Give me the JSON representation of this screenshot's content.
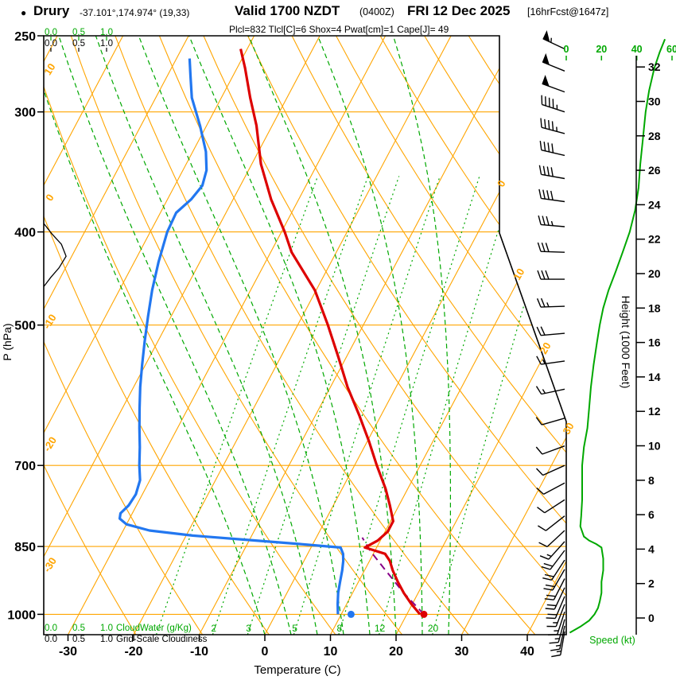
{
  "header": {
    "bullet": "●",
    "station": "Drury",
    "coords": "-37.101°,174.974° (19,33)",
    "valid_main": "Valid 1700 NZDT",
    "valid_zulu": "(0400Z)",
    "valid_date": "FRI 12 Dec 2025",
    "fcst_info": "[16hrFcst@1647z]",
    "indices_text": "Plcl=832 Tlcl[C]=6 Shox=4 Pwat[cm]=1 Cape[J]= 49"
  },
  "axes": {
    "pressure_title": "P (hPa)",
    "pressure_ticks": [
      250,
      300,
      400,
      500,
      700,
      850,
      1000
    ],
    "temperature_title": "Temperature (C)",
    "temperature_ticks": [
      -30,
      -20,
      -10,
      0,
      10,
      20,
      30,
      40
    ],
    "height_title": "Height (1000 Feet)",
    "height_ticks": [
      0,
      2,
      4,
      6,
      8,
      10,
      12,
      14,
      16,
      18,
      20,
      22,
      24,
      26,
      28,
      30,
      32
    ],
    "speed_title": "Speed (kt)",
    "speed_ticks": [
      0,
      20,
      40,
      60
    ],
    "cloud_scale_ticks": [
      "0.0",
      "0.5",
      "1.0"
    ],
    "cloudwater_title": "CloudWater (g/Kg)",
    "cloudiness_title": "Grid-Scale Cloudiness"
  },
  "colors": {
    "isotherms_adiabats": "#FFA500",
    "moist_mixing": "#00A800",
    "temperature": "#DD0000",
    "dewpoint": "#2277F0",
    "parcel": "#880088",
    "indices_text": "#C00060",
    "wind": "#000000",
    "speed_curve": "#00A800"
  },
  "chart_data": {
    "type": "line",
    "subtype": "skew-t log-p forecast sounding",
    "title": "Valid 1700 NZDT (0400Z) FRI 12 Dec 2025 [16hrFcst@1647z]",
    "station": "Drury -37.101°,174.974° (19,33)",
    "xlabel": "Temperature (C)",
    "ylabel": "P (hPa)",
    "y2label": "Height (1000 Feet)",
    "xlim": [
      -35,
      45
    ],
    "ylim": [
      1050,
      250
    ],
    "grid": true,
    "indices": {
      "Plcl": 832,
      "Tlcl_C": 6,
      "Shox": 4,
      "Pwat_cm": 1,
      "Cape_J": 49
    },
    "temperature_profile": [
      [
        1000,
        22.0
      ],
      [
        975,
        19.8
      ],
      [
        950,
        17.8
      ],
      [
        925,
        16.0
      ],
      [
        900,
        14.3
      ],
      [
        880,
        13.1
      ],
      [
        865,
        11.8
      ],
      [
        852,
        8.2
      ],
      [
        838,
        9.6
      ],
      [
        820,
        10.4
      ],
      [
        800,
        10.4
      ],
      [
        770,
        8.6
      ],
      [
        740,
        6.6
      ],
      [
        700,
        3.4
      ],
      [
        660,
        0.2
      ],
      [
        620,
        -3.4
      ],
      [
        580,
        -7.4
      ],
      [
        540,
        -11.2
      ],
      [
        500,
        -15.4
      ],
      [
        460,
        -20.2
      ],
      [
        420,
        -26.8
      ],
      [
        400,
        -29.5
      ],
      [
        370,
        -34.2
      ],
      [
        340,
        -38.6
      ],
      [
        310,
        -42.4
      ],
      [
        290,
        -45.6
      ],
      [
        270,
        -48.8
      ],
      [
        258,
        -51.0
      ]
    ],
    "dewpoint_profile": [
      [
        1000,
        9.5
      ],
      [
        975,
        8.6
      ],
      [
        950,
        7.8
      ],
      [
        925,
        7.2
      ],
      [
        900,
        6.6
      ],
      [
        880,
        6.0
      ],
      [
        865,
        5.4
      ],
      [
        852,
        4.5
      ],
      [
        845,
        -2.0
      ],
      [
        836,
        -11.0
      ],
      [
        828,
        -19.0
      ],
      [
        818,
        -26.0
      ],
      [
        806,
        -30.0
      ],
      [
        795,
        -31.5
      ],
      [
        785,
        -31.8
      ],
      [
        770,
        -31.2
      ],
      [
        750,
        -31.0
      ],
      [
        725,
        -31.5
      ],
      [
        700,
        -32.8
      ],
      [
        670,
        -34.2
      ],
      [
        640,
        -35.8
      ],
      [
        610,
        -37.4
      ],
      [
        580,
        -39.0
      ],
      [
        550,
        -40.5
      ],
      [
        520,
        -42.0
      ],
      [
        490,
        -43.5
      ],
      [
        460,
        -45.0
      ],
      [
        430,
        -46.3
      ],
      [
        400,
        -47.4
      ],
      [
        382,
        -47.6
      ],
      [
        370,
        -46.4
      ],
      [
        358,
        -45.8
      ],
      [
        345,
        -46.4
      ],
      [
        330,
        -48.0
      ],
      [
        310,
        -51.0
      ],
      [
        290,
        -54.5
      ],
      [
        275,
        -56.5
      ],
      [
        264,
        -58.0
      ]
    ],
    "parcel_path": [
      [
        1000,
        22.6
      ],
      [
        950,
        17.8
      ],
      [
        900,
        13.2
      ],
      [
        860,
        9.4
      ],
      [
        832,
        7.0
      ]
    ],
    "surface_markers": [
      {
        "name": "surface-temperature",
        "p": 1000,
        "t": 22.6
      },
      {
        "name": "surface-dewpoint",
        "p": 1000,
        "t": 11.5
      }
    ],
    "wind_speed_profile_kt": [
      [
        1045,
        2
      ],
      [
        1030,
        8
      ],
      [
        1015,
        13
      ],
      [
        1000,
        16
      ],
      [
        985,
        18
      ],
      [
        970,
        19
      ],
      [
        950,
        20
      ],
      [
        925,
        20
      ],
      [
        900,
        21
      ],
      [
        875,
        21
      ],
      [
        852,
        20
      ],
      [
        845,
        17
      ],
      [
        838,
        13
      ],
      [
        830,
        10
      ],
      [
        820,
        9
      ],
      [
        810,
        8
      ],
      [
        790,
        8.5
      ],
      [
        760,
        9
      ],
      [
        730,
        9
      ],
      [
        700,
        9
      ],
      [
        670,
        10
      ],
      [
        640,
        12
      ],
      [
        610,
        13
      ],
      [
        580,
        14
      ],
      [
        550,
        15.5
      ],
      [
        520,
        17.5
      ],
      [
        500,
        19
      ],
      [
        480,
        21
      ],
      [
        460,
        24
      ],
      [
        440,
        28
      ],
      [
        420,
        32
      ],
      [
        400,
        36
      ],
      [
        380,
        39
      ],
      [
        360,
        41
      ],
      [
        340,
        42
      ],
      [
        320,
        43.5
      ],
      [
        300,
        45
      ],
      [
        285,
        47
      ],
      [
        270,
        50
      ],
      [
        260,
        53
      ],
      [
        252,
        56
      ]
    ],
    "wind_barbs": [
      [
        258,
        55,
        295
      ],
      [
        272,
        52,
        292
      ],
      [
        286,
        50,
        290
      ],
      [
        300,
        46,
        288
      ],
      [
        316,
        44,
        285
      ],
      [
        333,
        42,
        283
      ],
      [
        352,
        40,
        280
      ],
      [
        372,
        38,
        278
      ],
      [
        395,
        36,
        275
      ],
      [
        420,
        32,
        272
      ],
      [
        448,
        28,
        270
      ],
      [
        478,
        24,
        268
      ],
      [
        510,
        20,
        265
      ],
      [
        545,
        17,
        262
      ],
      [
        583,
        14,
        258
      ],
      [
        625,
        12,
        254
      ],
      [
        668,
        10,
        250
      ],
      [
        700,
        9,
        246
      ],
      [
        730,
        9,
        242
      ],
      [
        760,
        9,
        237
      ],
      [
        790,
        8,
        232
      ],
      [
        818,
        9,
        227
      ],
      [
        840,
        14,
        222
      ],
      [
        858,
        20,
        217
      ],
      [
        878,
        21,
        213
      ],
      [
        898,
        21,
        210
      ],
      [
        918,
        20,
        207
      ],
      [
        938,
        19,
        205
      ],
      [
        958,
        18,
        203
      ],
      [
        976,
        17,
        201
      ],
      [
        994,
        16,
        198
      ],
      [
        1012,
        15,
        195
      ],
      [
        1028,
        14,
        192
      ],
      [
        1042,
        13,
        190
      ]
    ],
    "cloudiness_profile": [
      [
        392,
        0
      ],
      [
        402,
        0.07
      ],
      [
        412,
        0.15
      ],
      [
        424,
        0.19
      ],
      [
        436,
        0.13
      ],
      [
        446,
        0.06
      ],
      [
        456,
        0
      ]
    ],
    "background": {
      "isobars": [
        300,
        400,
        500,
        700,
        850,
        1000
      ],
      "isotherm_step_c": 10,
      "isotherm_labels_right": [
        0,
        10,
        20,
        30
      ],
      "dry_adiabat_labels_left": [
        10,
        0,
        -10,
        -20,
        -30
      ],
      "moist_adiabat_surface_temps_c": [
        0,
        4,
        8,
        12,
        16,
        20,
        24,
        28
      ],
      "mixing_ratio_lines_gkg": [
        1,
        2,
        3,
        5,
        8,
        12,
        20
      ]
    }
  }
}
